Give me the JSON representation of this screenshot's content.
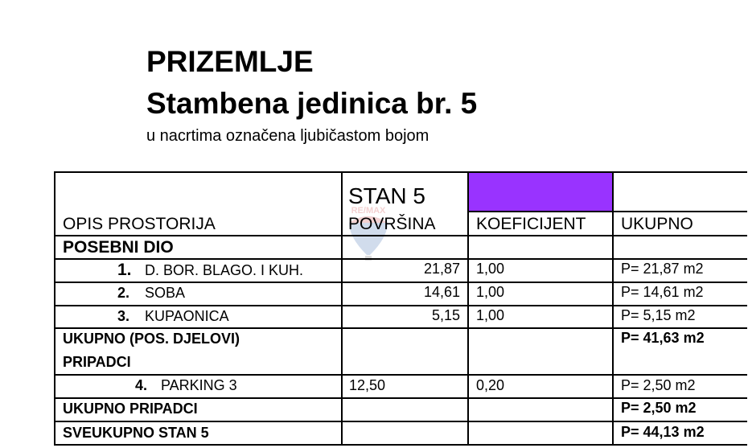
{
  "title": "PRIZEMLJE",
  "subtitle": "Stambena jedinica br. 5",
  "note": "u nacrtima označena ljubičastom bojom",
  "watermark": "RE/MAX",
  "colors": {
    "unit_marker": "#9933ff"
  },
  "table": {
    "unit_label": "STAN 5",
    "headers": [
      "OPIS PROSTORIJA",
      "POVRŠINA",
      "KOEFICIJENT",
      "UKUPNO"
    ],
    "section1": "POSEBNI DIO",
    "rows": [
      {
        "num": "1.",
        "name": "D. BOR. BLAGO. I  KUH.",
        "area": "21,87",
        "coef": "1,00",
        "total": "P= 21,87 m2"
      },
      {
        "num": "2.",
        "name": "SOBA",
        "area": "14,61",
        "coef": "1,00",
        "total": "P= 14,61 m2"
      },
      {
        "num": "3.",
        "name": "KUPAONICA",
        "area": "5,15",
        "coef": "1,00",
        "total": "P= 5,15 m2"
      }
    ],
    "subtotal1_label": "UKUPNO (POS. DJELOVI)",
    "subtotal1": "P= 41,63 m2",
    "section2": "PRIPADCI",
    "row4": {
      "num": "4.",
      "name": "PARKING 3",
      "area": "12,50",
      "coef": "0,20",
      "total": "P= 2,50 m2"
    },
    "subtotal2_label": "UKUPNO PRIPADCI",
    "subtotal2": "P= 2,50 m2",
    "grand_label": "SVEUKUPNO STAN 5",
    "grand": "P= 44,13 m2"
  }
}
